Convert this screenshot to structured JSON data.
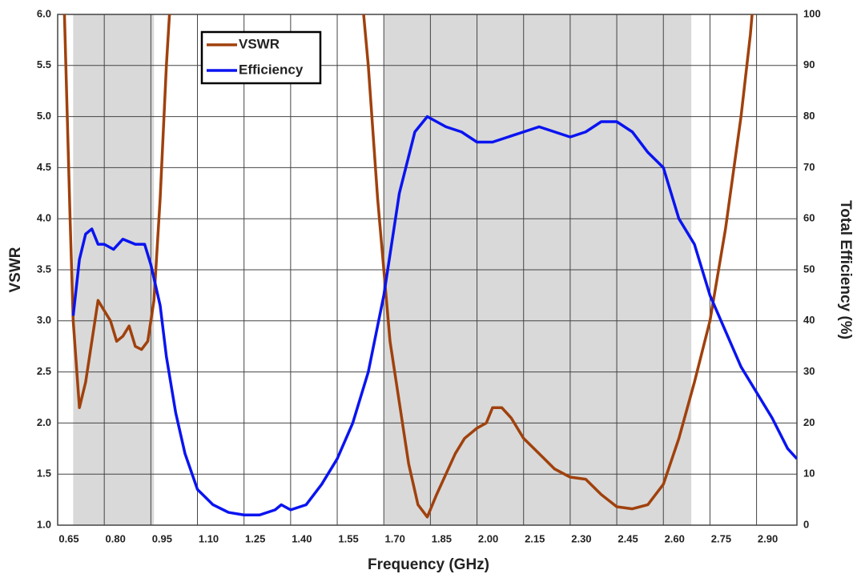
{
  "chart_data": {
    "type": "line",
    "x_label": "Frequency (GHz)",
    "y_label": "VSWR",
    "y2_label": "Total Efficiency (%)",
    "xlim": [
      0.65,
      3.03
    ],
    "ylim": [
      1.0,
      6.0
    ],
    "y2lim": [
      0,
      100
    ],
    "xticks": [
      0.65,
      {
        "value": 0.8,
        "label": "0.80"
      },
      0.95,
      {
        "value": 1.1,
        "label": "1.10"
      },
      1.25,
      {
        "value": 1.4,
        "label": "1.40"
      },
      1.55,
      {
        "value": 1.7,
        "label": "1.70"
      },
      1.85,
      {
        "value": 2.0,
        "label": "2.00"
      },
      2.15,
      {
        "value": 2.3,
        "label": "2.30"
      },
      2.45,
      {
        "value": 2.6,
        "label": "2.60"
      },
      2.75,
      {
        "value": 2.9,
        "label": "2.90"
      }
    ],
    "yticks": [
      {
        "value": 1,
        "label": "1.0"
      },
      1.5,
      {
        "value": 2,
        "label": "2.0"
      },
      2.5,
      {
        "value": 3,
        "label": "3.0"
      },
      3.5,
      {
        "value": 4,
        "label": "4.0"
      },
      4.5,
      {
        "value": 5,
        "label": "5.0"
      },
      5.5,
      {
        "value": 6,
        "label": "6.0"
      }
    ],
    "y2ticks": [
      0,
      10,
      20,
      30,
      40,
      50,
      60,
      70,
      80,
      90,
      100
    ],
    "grid": true,
    "legend": "upper left",
    "shaded_bands": [
      [
        0.7,
        0.96
      ],
      [
        1.7,
        2.69
      ]
    ],
    "band_color": "#d9d9d9",
    "series": [
      {
        "name": "VSWR",
        "color": "#a0410d",
        "x": [
          0.67,
          0.69,
          0.7,
          0.72,
          0.74,
          0.76,
          0.78,
          0.8,
          0.82,
          0.84,
          0.86,
          0.88,
          0.9,
          0.92,
          0.94,
          0.96,
          0.98,
          1.0,
          1.02,
          1.3,
          1.62,
          1.65,
          1.68,
          1.7,
          1.72,
          1.75,
          1.78,
          1.81,
          1.84,
          1.87,
          1.9,
          1.93,
          1.96,
          2.0,
          2.03,
          2.05,
          2.08,
          2.11,
          2.15,
          2.2,
          2.25,
          2.3,
          2.35,
          2.4,
          2.45,
          2.5,
          2.55,
          2.6,
          2.65,
          2.7,
          2.75,
          2.8,
          2.85,
          2.88,
          2.9
        ],
        "values": [
          6.2,
          4.0,
          3.0,
          2.15,
          2.4,
          2.8,
          3.2,
          3.1,
          3.0,
          2.8,
          2.85,
          2.95,
          2.75,
          2.72,
          2.8,
          3.2,
          4.2,
          5.5,
          6.5,
          null,
          6.5,
          5.5,
          4.2,
          3.5,
          2.8,
          2.2,
          1.6,
          1.2,
          1.08,
          1.3,
          1.5,
          1.7,
          1.85,
          1.95,
          2.0,
          2.15,
          2.15,
          2.05,
          1.85,
          1.7,
          1.55,
          1.47,
          1.45,
          1.3,
          1.18,
          1.16,
          1.2,
          1.4,
          1.85,
          2.4,
          3.0,
          3.9,
          5.0,
          5.8,
          6.5
        ]
      },
      {
        "name": "Efficiency",
        "color": "#0a14f0",
        "axis": "y2",
        "x": [
          0.7,
          0.72,
          0.74,
          0.76,
          0.78,
          0.8,
          0.83,
          0.86,
          0.9,
          0.93,
          0.95,
          0.98,
          1.0,
          1.03,
          1.06,
          1.1,
          1.15,
          1.2,
          1.25,
          1.3,
          1.35,
          1.37,
          1.4,
          1.45,
          1.5,
          1.55,
          1.6,
          1.65,
          1.7,
          1.75,
          1.8,
          1.84,
          1.9,
          1.95,
          2.0,
          2.05,
          2.1,
          2.15,
          2.2,
          2.25,
          2.3,
          2.35,
          2.4,
          2.45,
          2.5,
          2.55,
          2.6,
          2.65,
          2.7,
          2.75,
          2.8,
          2.85,
          2.9,
          2.95,
          3.0,
          3.03
        ],
        "values": [
          41,
          52,
          57,
          58,
          55,
          55,
          54,
          56,
          55,
          55,
          51,
          43,
          33,
          22,
          14,
          7,
          4,
          2.5,
          2,
          2,
          3,
          4,
          3,
          4,
          8,
          13,
          20,
          30,
          45,
          65,
          77,
          80,
          78,
          77,
          75,
          75,
          76,
          77,
          78,
          77,
          76,
          77,
          79,
          79,
          77,
          73,
          70,
          60,
          55,
          45,
          38,
          31,
          26,
          21,
          15,
          13
        ]
      }
    ]
  }
}
